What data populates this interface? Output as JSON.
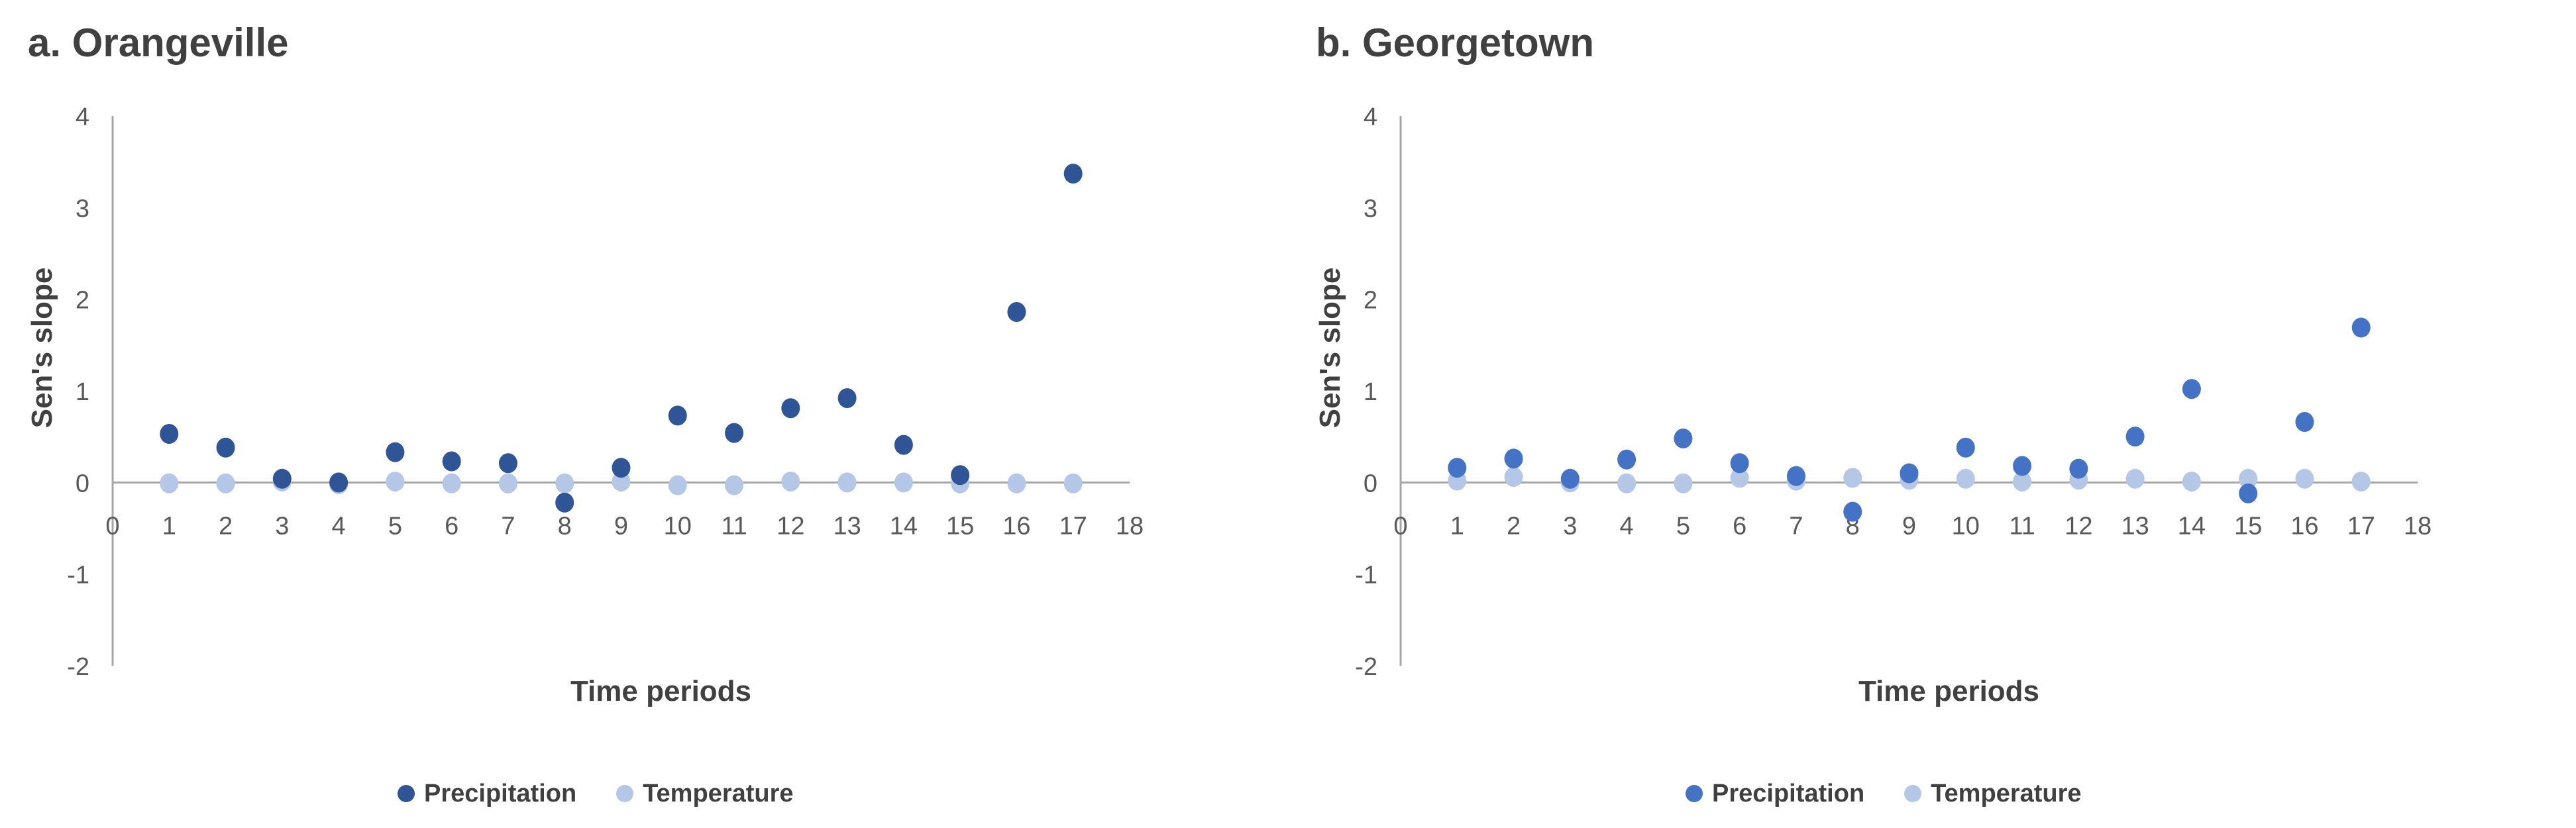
{
  "chart_data": [
    {
      "type": "scatter",
      "title": "a. Orangeville",
      "xlabel": "Time periods",
      "ylabel": "Sen's slope",
      "xlim": [
        0,
        18
      ],
      "ylim": [
        -2,
        4
      ],
      "xticks": [
        0,
        1,
        2,
        3,
        4,
        5,
        6,
        7,
        8,
        9,
        10,
        11,
        12,
        13,
        14,
        15,
        16,
        17,
        18
      ],
      "yticks": [
        -2,
        -1,
        0,
        1,
        2,
        3,
        4
      ],
      "legend_position": "bottom",
      "series": [
        {
          "name": "Precipitation",
          "color": "#2F5597",
          "x": [
            1,
            2,
            3,
            4,
            5,
            6,
            7,
            8,
            9,
            10,
            11,
            12,
            13,
            14,
            15,
            16,
            17
          ],
          "y": [
            0.53,
            0.38,
            0.04,
            0.0,
            0.33,
            0.23,
            0.21,
            -0.22,
            0.16,
            0.73,
            0.54,
            0.81,
            0.92,
            0.41,
            0.08,
            1.86,
            3.37
          ]
        },
        {
          "name": "Temperature",
          "color": "#B4C7E7",
          "x": [
            1,
            2,
            3,
            4,
            5,
            6,
            7,
            8,
            9,
            10,
            11,
            12,
            13,
            14,
            15,
            16,
            17
          ],
          "y": [
            -0.01,
            -0.01,
            0.01,
            -0.02,
            0.01,
            -0.01,
            -0.01,
            -0.01,
            0.01,
            -0.03,
            -0.03,
            0.01,
            0.0,
            0.0,
            -0.01,
            -0.01,
            -0.01
          ]
        }
      ]
    },
    {
      "type": "scatter",
      "title": "b. Georgetown",
      "xlabel": "Time periods",
      "ylabel": "Sen's slope",
      "xlim": [
        0,
        18
      ],
      "ylim": [
        -2,
        4
      ],
      "xticks": [
        0,
        1,
        2,
        3,
        4,
        5,
        6,
        7,
        8,
        9,
        10,
        11,
        12,
        13,
        14,
        15,
        16,
        17,
        18
      ],
      "yticks": [
        -2,
        -1,
        0,
        1,
        2,
        3,
        4
      ],
      "legend_position": "bottom",
      "series": [
        {
          "name": "Precipitation",
          "color": "#4472C4",
          "x": [
            1,
            2,
            3,
            4,
            5,
            6,
            7,
            8,
            9,
            10,
            11,
            12,
            13,
            14,
            15,
            16,
            17
          ],
          "y": [
            0.16,
            0.26,
            0.04,
            0.25,
            0.48,
            0.21,
            0.07,
            -0.32,
            0.1,
            0.38,
            0.18,
            0.15,
            0.5,
            1.02,
            -0.12,
            0.66,
            1.69
          ]
        },
        {
          "name": "Temperature",
          "color": "#B4C7E7",
          "x": [
            1,
            2,
            3,
            4,
            5,
            6,
            7,
            8,
            9,
            10,
            11,
            12,
            13,
            14,
            15,
            16,
            17
          ],
          "y": [
            0.02,
            0.06,
            0.0,
            -0.01,
            -0.01,
            0.05,
            0.02,
            0.05,
            0.03,
            0.04,
            0.01,
            0.03,
            0.04,
            0.01,
            0.04,
            0.04,
            0.01
          ]
        }
      ]
    }
  ]
}
